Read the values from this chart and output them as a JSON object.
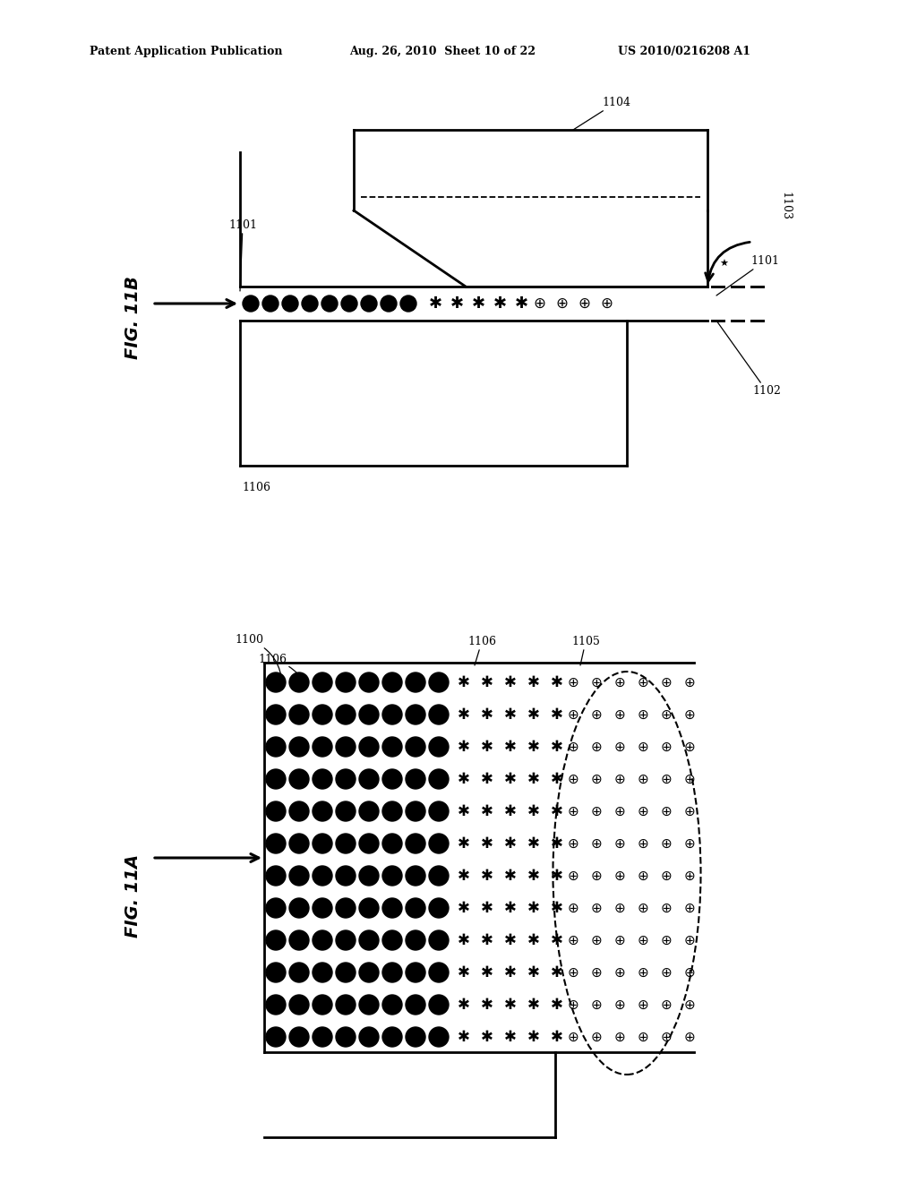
{
  "bg_color": "#ffffff",
  "header_left": "Patent Application Publication",
  "header_mid": "Aug. 26, 2010  Sheet 10 of 22",
  "header_right": "US 2010/0216208 A1",
  "fig11b_label": "FIG. 11B",
  "fig11a_label": "FIG. 11A",
  "lw": 2.0
}
